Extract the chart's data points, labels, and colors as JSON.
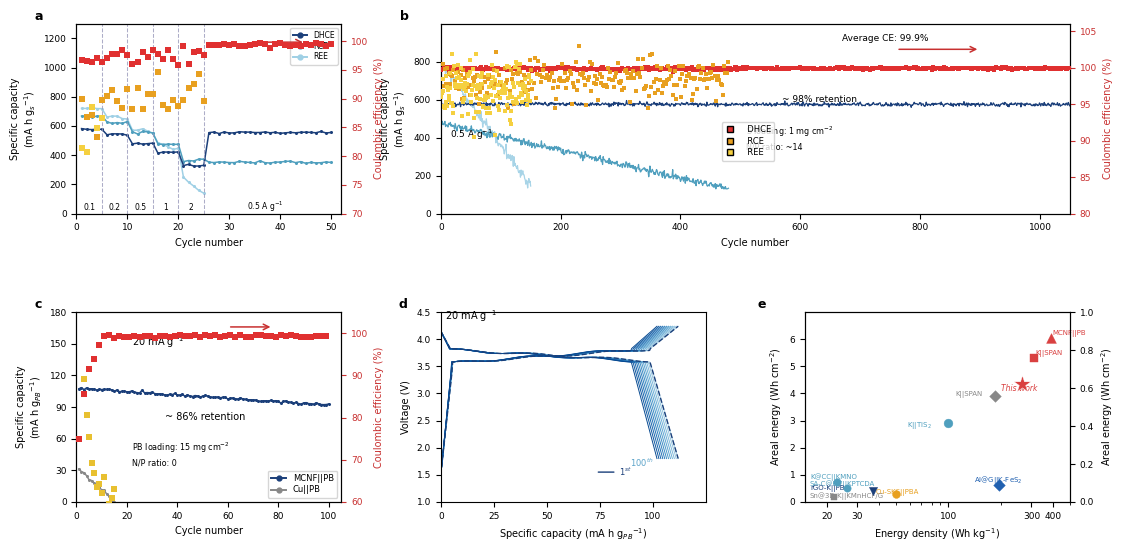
{
  "fig_width": 10.8,
  "fig_height": 5.56,
  "colors": {
    "DHCE_cap": "#1b3f7a",
    "RCE_cap": "#4f9fbe",
    "REE_cap": "#9fd0e5",
    "DHCE_ce": "#e03030",
    "RCE_ce": "#e8a020",
    "REE_ce": "#f5d040",
    "MCNF_cap": "#1b3f7a",
    "Cu_cap": "#888888",
    "MCNF_ce": "#e03030",
    "Cu_ce": "#e8c030",
    "arrow": "#c83030"
  },
  "panel_a": {
    "xlim": [
      0,
      52
    ],
    "ylim_left": [
      0,
      1300
    ],
    "ylim_right": [
      70,
      103
    ],
    "xticks": [
      0,
      10,
      20,
      30,
      40,
      50
    ],
    "yticks_left": [
      0,
      200,
      400,
      600,
      800,
      1000,
      1200
    ],
    "yticks_right": [
      70,
      75,
      80,
      85,
      90,
      95,
      100
    ],
    "vlines": [
      5,
      10,
      15,
      20,
      25
    ]
  },
  "panel_b": {
    "xlim": [
      0,
      1050
    ],
    "ylim_left": [
      0,
      1000
    ],
    "ylim_right": [
      80,
      106
    ],
    "xticks": [
      0,
      200,
      400,
      600,
      800,
      1000
    ],
    "yticks_left": [
      0,
      200,
      400,
      600,
      800
    ],
    "yticks_right": [
      80,
      85,
      90,
      95,
      100,
      105
    ]
  },
  "panel_c": {
    "xlim": [
      0,
      105
    ],
    "ylim_left": [
      0,
      180
    ],
    "ylim_right": [
      60,
      105
    ],
    "xticks": [
      0,
      20,
      40,
      60,
      80,
      100
    ],
    "yticks_left": [
      0,
      30,
      60,
      90,
      120,
      150,
      180
    ],
    "yticks_right": [
      60,
      70,
      80,
      90,
      100
    ]
  },
  "panel_d": {
    "xlim": [
      0,
      125
    ],
    "ylim": [
      1.0,
      4.5
    ],
    "xticks": [
      0,
      25,
      50,
      75,
      100
    ],
    "yticks": [
      1.0,
      1.5,
      2.0,
      2.5,
      3.0,
      3.5,
      4.0,
      4.5
    ]
  },
  "panel_e": {
    "xlim": [
      15,
      500
    ],
    "ylim_left": [
      0,
      7.0
    ],
    "ylim_right": [
      0,
      1.0
    ],
    "yticks_left": [
      0,
      1,
      2,
      3,
      4,
      5,
      6
    ],
    "yticks_right": [
      0.0,
      0.2,
      0.4,
      0.6,
      0.8,
      1.0
    ]
  }
}
